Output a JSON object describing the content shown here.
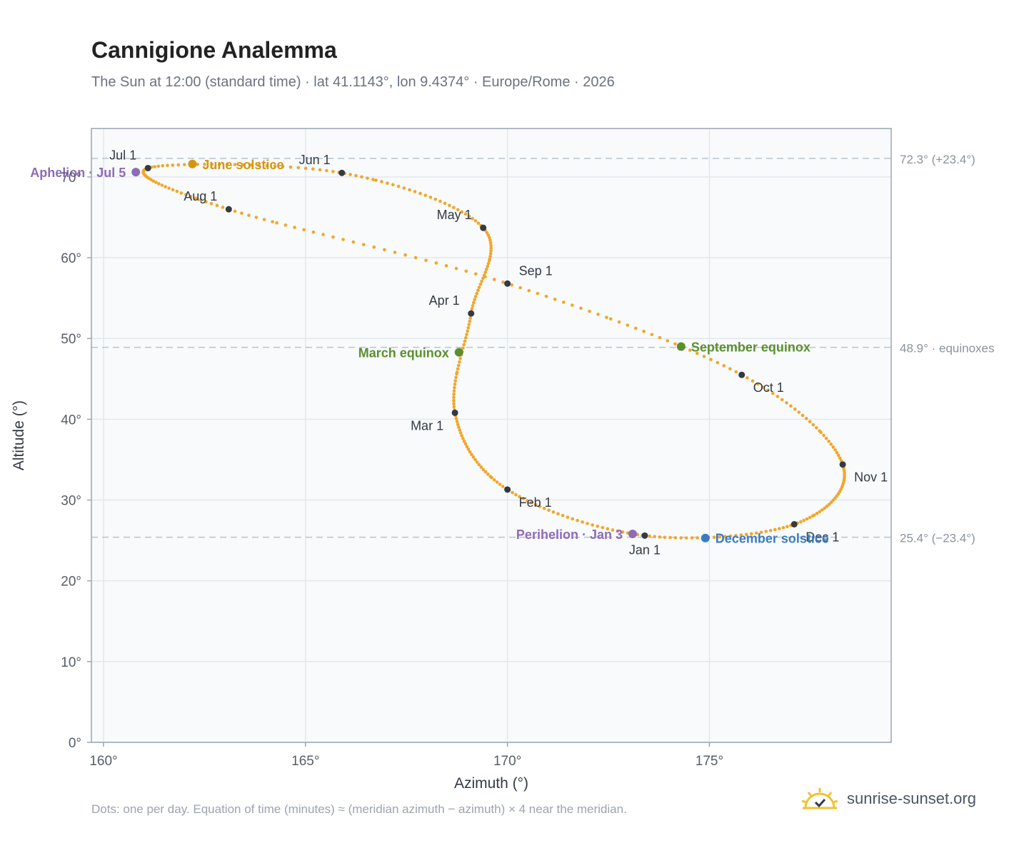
{
  "header": {
    "title": "Cannigione Analemma",
    "subtitle": "The Sun at 12:00 (standard time) · lat 41.1143°, lon 9.4374° · Europe/Rome · 2026"
  },
  "footer": {
    "note": "Dots: one per day. Equation of time (minutes) ≈ (meridian azimuth − azimuth) × 4 near the meridian.",
    "brand": "sunrise-sunset.org",
    "brand_icon": "sun-logo-icon"
  },
  "colors": {
    "curve": "#f2a629",
    "month_marker": "#333a44",
    "solstice_june": "#d4960f",
    "equinox": "#5a8f2e",
    "solstice_december": "#3b7bbf",
    "apsis": "#8e6bb8",
    "reference_line": "#b9c3cc",
    "plot_bg": "#f8fafc",
    "axis_frame": "#9aa5b1"
  },
  "chart_data": {
    "type": "scatter",
    "xlabel": "Azimuth (°)",
    "ylabel": "Altitude (°)",
    "xlim": [
      159.7,
      179.5
    ],
    "ylim": [
      0,
      76
    ],
    "xticks": [
      160,
      165,
      170,
      175
    ],
    "xtick_labels": [
      "160°",
      "165°",
      "170°",
      "175°"
    ],
    "yticks": [
      0,
      10,
      20,
      30,
      40,
      50,
      60,
      70
    ],
    "ytick_labels": [
      "0°",
      "10°",
      "20°",
      "30°",
      "40°",
      "50°",
      "60°",
      "70°"
    ],
    "grid": true,
    "reference_lines": [
      {
        "y": 72.3,
        "label": "72.3° (+23.4°)"
      },
      {
        "y": 48.9,
        "label": "48.9° · equinoxes"
      },
      {
        "y": 25.4,
        "label": "25.4° (−23.4°)"
      }
    ],
    "series": [
      {
        "kind": "daily-path",
        "points": [
          {
            "x": 173.4,
            "y": 25.6
          },
          {
            "x": 170.0,
            "y": 31.3
          },
          {
            "x": 168.7,
            "y": 40.8
          },
          {
            "x": 169.1,
            "y": 53.1
          },
          {
            "x": 169.4,
            "y": 63.7
          },
          {
            "x": 165.9,
            "y": 70.5
          },
          {
            "x": 161.1,
            "y": 71.1
          },
          {
            "x": 163.1,
            "y": 66.0
          },
          {
            "x": 170.0,
            "y": 56.8
          },
          {
            "x": 175.8,
            "y": 45.5
          },
          {
            "x": 178.3,
            "y": 34.4
          },
          {
            "x": 177.1,
            "y": 27.0
          },
          {
            "x": 173.4,
            "y": 25.6
          }
        ]
      }
    ],
    "month_markers": [
      {
        "label": "Jan 1",
        "x": 173.4,
        "y": 25.6,
        "anchor": "below"
      },
      {
        "label": "Feb 1",
        "x": 170.0,
        "y": 31.3,
        "anchor": "below-right"
      },
      {
        "label": "Mar 1",
        "x": 168.7,
        "y": 40.8,
        "anchor": "below-left"
      },
      {
        "label": "Apr 1",
        "x": 169.1,
        "y": 53.1,
        "anchor": "above-left"
      },
      {
        "label": "May 1",
        "x": 169.4,
        "y": 63.7,
        "anchor": "above-left"
      },
      {
        "label": "Jun 1",
        "x": 165.9,
        "y": 70.5,
        "anchor": "above-left"
      },
      {
        "label": "Jul 1",
        "x": 161.1,
        "y": 71.1,
        "anchor": "above-left"
      },
      {
        "label": "Aug 1",
        "x": 163.1,
        "y": 66.0,
        "anchor": "above-left"
      },
      {
        "label": "Sep 1",
        "x": 170.0,
        "y": 56.8,
        "anchor": "above-right"
      },
      {
        "label": "Oct 1",
        "x": 175.8,
        "y": 45.5,
        "anchor": "below-right"
      },
      {
        "label": "Nov 1",
        "x": 178.3,
        "y": 34.4,
        "anchor": "below-right"
      },
      {
        "label": "Dec 1",
        "x": 177.1,
        "y": 27.0,
        "anchor": "below-right"
      }
    ],
    "events": [
      {
        "label": "June solstice",
        "x": 162.2,
        "y": 71.6,
        "kind": "solstice_june",
        "anchor": "right"
      },
      {
        "label": "March equinox",
        "x": 168.8,
        "y": 48.3,
        "kind": "equinox",
        "anchor": "left"
      },
      {
        "label": "September equinox",
        "x": 174.3,
        "y": 49.0,
        "kind": "equinox",
        "anchor": "right"
      },
      {
        "label": "December solstice",
        "x": 174.9,
        "y": 25.3,
        "kind": "solstice_december",
        "anchor": "right"
      },
      {
        "label": "Aphelion · Jul 5",
        "x": 160.8,
        "y": 70.6,
        "kind": "apsis",
        "anchor": "left"
      },
      {
        "label": "Perihelion · Jan 3",
        "x": 173.1,
        "y": 25.8,
        "kind": "apsis",
        "anchor": "left"
      }
    ]
  }
}
